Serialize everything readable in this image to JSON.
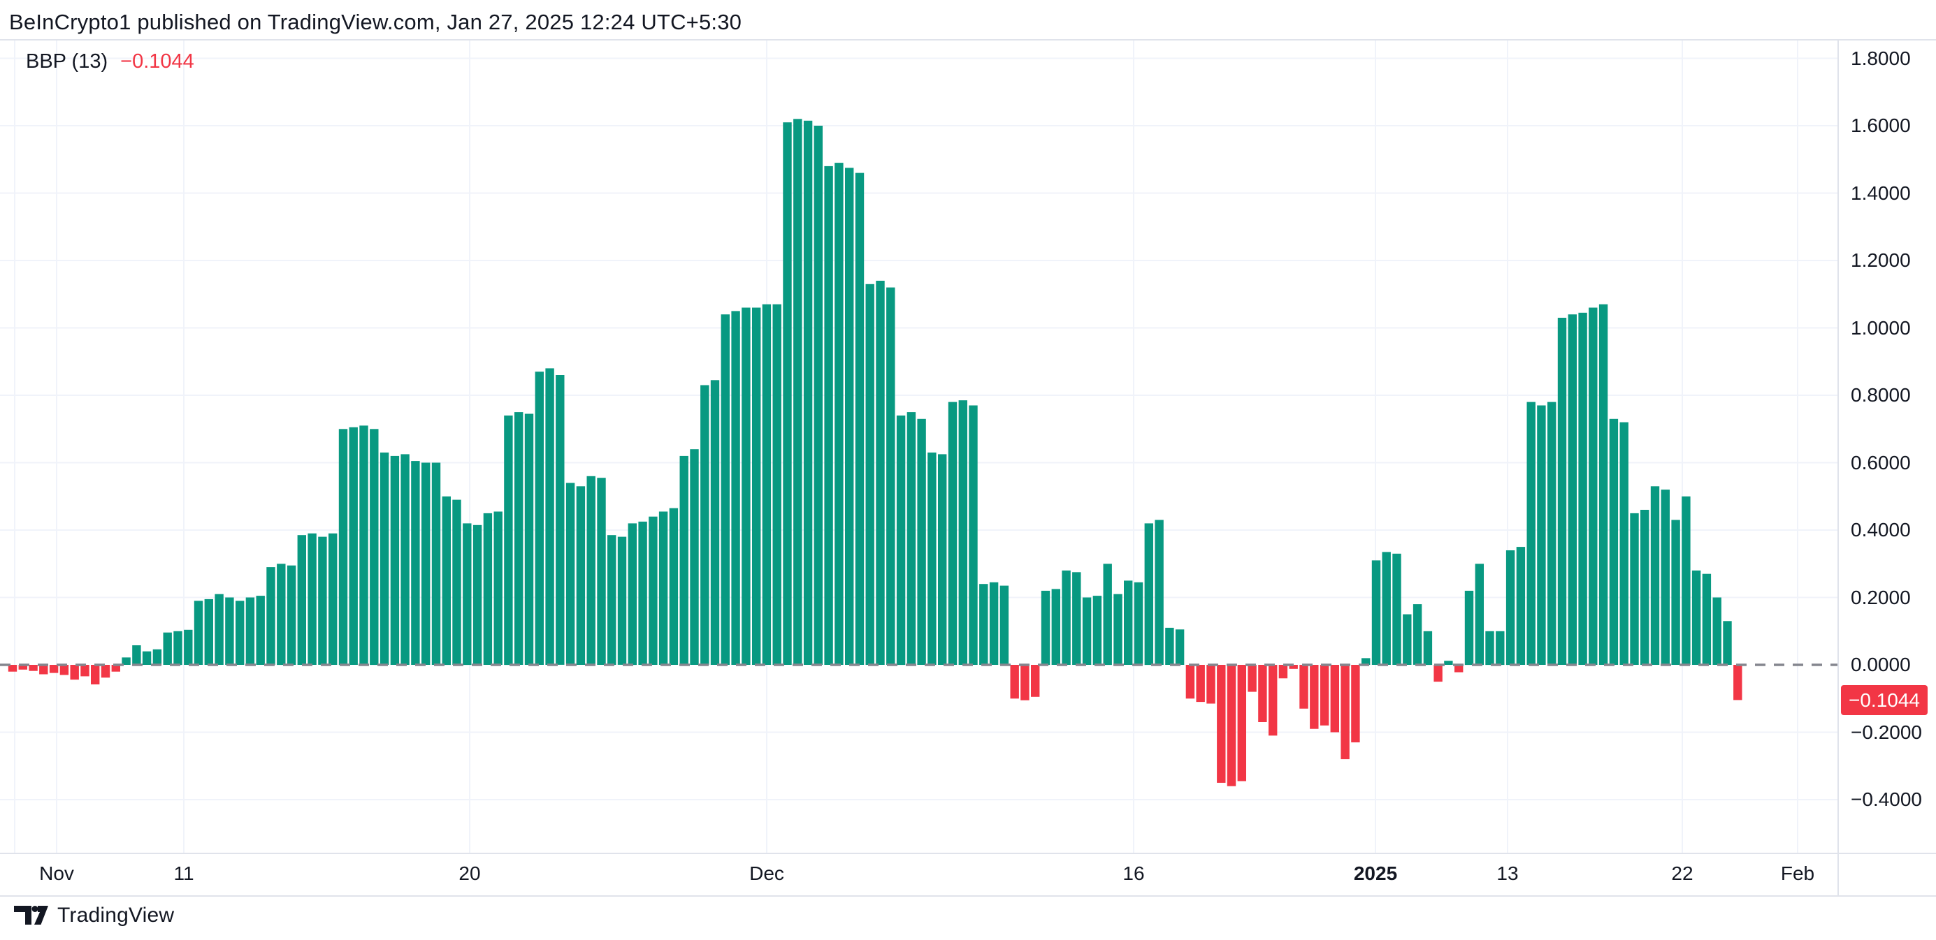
{
  "header": {
    "title": "BeInCrypto1 published on TradingView.com, Jan 27, 2025 12:24 UTC+5:30"
  },
  "indicator": {
    "name": "BBP (13)",
    "value": "−0.1044"
  },
  "last_value_badge": "−0.1044",
  "footer": {
    "brand": "TradingView"
  },
  "colors": {
    "positive": "#089981",
    "negative": "#f23645",
    "text": "#131722",
    "grid": "#f0f3fa",
    "border": "#e0e3eb",
    "zero_dash": "#85878f",
    "badge_bg": "#f23645",
    "badge_text": "#ffffff",
    "background": "#ffffff"
  },
  "chart_data": {
    "type": "bar",
    "title": "BBP (13) — Bull Bear Power histogram",
    "xlabel": "",
    "ylabel": "",
    "ylim": [
      -0.52,
      1.855
    ],
    "grid": true,
    "legend_position": "none",
    "zero_line": "dashed",
    "y_ticks": [
      {
        "label": "1.8000",
        "value": 1.8
      },
      {
        "label": "1.6000",
        "value": 1.6
      },
      {
        "label": "1.4000",
        "value": 1.4
      },
      {
        "label": "1.2000",
        "value": 1.2
      },
      {
        "label": "1.0000",
        "value": 1.0
      },
      {
        "label": "0.8000",
        "value": 0.8
      },
      {
        "label": "0.6000",
        "value": 0.6
      },
      {
        "label": "0.4000",
        "value": 0.4
      },
      {
        "label": "0.2000",
        "value": 0.2
      },
      {
        "label": "0.0000",
        "value": 0.0
      },
      {
        "label": "−0.2000",
        "value": -0.2
      },
      {
        "label": "−0.4000",
        "value": -0.4
      }
    ],
    "x_ticks": [
      {
        "label": "Nov",
        "x": 81,
        "bold": false
      },
      {
        "label": "11",
        "x": 263,
        "bold": false
      },
      {
        "label": "20",
        "x": 672,
        "bold": false
      },
      {
        "label": "Dec",
        "x": 1097,
        "bold": false
      },
      {
        "label": "16",
        "x": 1622,
        "bold": false
      },
      {
        "label": "2025",
        "x": 1968,
        "bold": true
      },
      {
        "label": "13",
        "x": 2157,
        "bold": false
      },
      {
        "label": "22",
        "x": 2407,
        "bold": false
      },
      {
        "label": "Feb",
        "x": 2572,
        "bold": false
      }
    ],
    "extra_vgrid_x": [
      21
    ],
    "last_value": -0.1044,
    "values": [
      -0.02,
      -0.014,
      -0.018,
      -0.028,
      -0.024,
      -0.03,
      -0.044,
      -0.034,
      -0.058,
      -0.038,
      -0.02,
      0.022,
      0.058,
      0.04,
      0.046,
      0.096,
      0.1,
      0.104,
      0.19,
      0.195,
      0.21,
      0.2,
      0.19,
      0.2,
      0.205,
      0.29,
      0.3,
      0.295,
      0.385,
      0.39,
      0.38,
      0.39,
      0.7,
      0.705,
      0.71,
      0.7,
      0.63,
      0.62,
      0.625,
      0.605,
      0.6,
      0.6,
      0.5,
      0.49,
      0.42,
      0.415,
      0.45,
      0.455,
      0.74,
      0.75,
      0.745,
      0.87,
      0.88,
      0.86,
      0.54,
      0.53,
      0.56,
      0.555,
      0.385,
      0.38,
      0.42,
      0.425,
      0.44,
      0.455,
      0.465,
      0.62,
      0.64,
      0.83,
      0.845,
      1.04,
      1.05,
      1.06,
      1.06,
      1.07,
      1.07,
      1.61,
      1.62,
      1.615,
      1.6,
      1.48,
      1.49,
      1.475,
      1.46,
      1.13,
      1.14,
      1.12,
      0.74,
      0.75,
      0.73,
      0.63,
      0.625,
      0.78,
      0.785,
      0.77,
      0.24,
      0.245,
      0.235,
      -0.1,
      -0.105,
      -0.095,
      0.22,
      0.225,
      0.28,
      0.275,
      0.2,
      0.205,
      0.3,
      0.21,
      0.25,
      0.245,
      0.42,
      0.43,
      0.11,
      0.105,
      -0.1,
      -0.11,
      -0.115,
      -0.35,
      -0.36,
      -0.345,
      -0.08,
      -0.17,
      -0.21,
      -0.04,
      -0.012,
      -0.13,
      -0.19,
      -0.18,
      -0.2,
      -0.28,
      -0.23,
      0.02,
      0.31,
      0.335,
      0.33,
      0.15,
      0.18,
      0.1,
      -0.05,
      0.012,
      -0.022,
      0.22,
      0.3,
      0.1,
      0.1,
      0.34,
      0.35,
      0.78,
      0.77,
      0.78,
      1.03,
      1.04,
      1.045,
      1.06,
      1.07,
      0.73,
      0.72,
      0.45,
      0.46,
      0.53,
      0.52,
      0.43,
      0.5,
      0.28,
      0.27,
      0.2,
      0.13,
      -0.1044
    ]
  }
}
